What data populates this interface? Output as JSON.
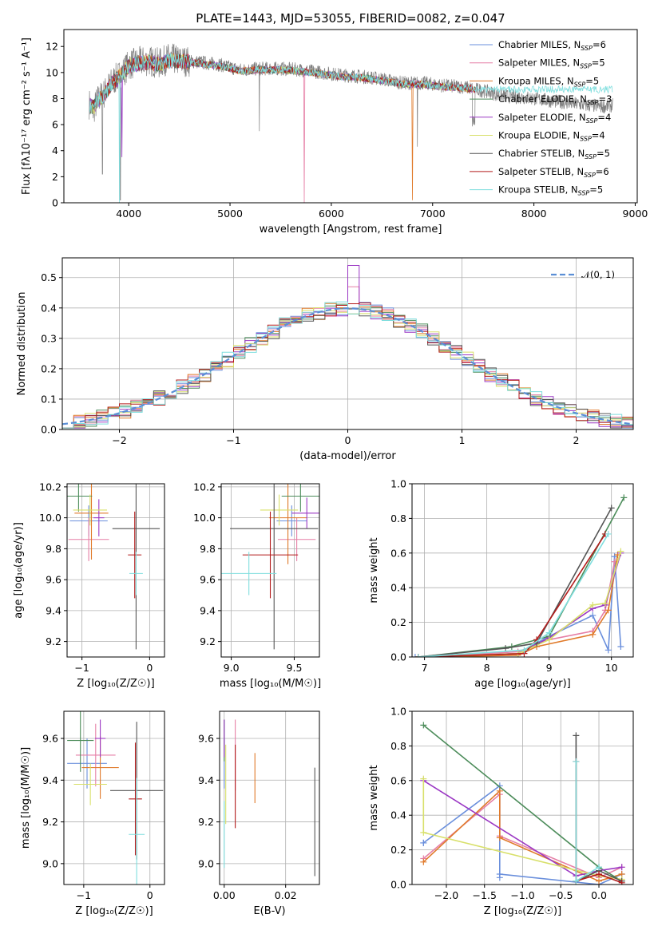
{
  "colors": [
    "#6a8fdc",
    "#e67fa6",
    "#e07a2a",
    "#4c8c5a",
    "#9b38c4",
    "#d8e06a",
    "#555555",
    "#b31b1b",
    "#7fdede"
  ],
  "chart_data": [
    {
      "id": "spectrum",
      "type": "line",
      "title": "PLATE=1443, MJD=53055, FIBERID=0082, z=0.047",
      "xlabel": "wavelength [Angstrom, rest frame]",
      "ylabel": "Flux [fλ10⁻¹⁷ erg cm⁻² s⁻¹ A⁻¹]",
      "xlim": [
        3360,
        9020
      ],
      "ylim": [
        0,
        13.3
      ],
      "xticks": [
        4000,
        5000,
        6000,
        7000,
        8000,
        9000
      ],
      "yticks": [
        0,
        2,
        4,
        6,
        8,
        10,
        12
      ],
      "legend_position": "right",
      "observed": {
        "color": "#808080",
        "x": [
          3610,
          3650,
          3700,
          3750,
          3800,
          3850,
          3900,
          3950,
          4000,
          4100,
          4200,
          4300,
          4400,
          4500,
          4700,
          4900,
          5100,
          5300,
          5500,
          5700,
          5900,
          6100,
          6300,
          6500,
          6700,
          6900,
          7100,
          7300,
          7500,
          7700,
          7900,
          8100,
          8300,
          8500,
          8700,
          8780
        ],
        "y": [
          7.6,
          7.1,
          8.0,
          8.3,
          8.9,
          9.4,
          9.7,
          10.1,
          10.6,
          10.8,
          10.9,
          10.7,
          11.1,
          10.9,
          10.8,
          10.6,
          10.2,
          10.3,
          10.3,
          10.2,
          10.0,
          9.8,
          9.7,
          9.5,
          9.2,
          9.2,
          9.0,
          8.9,
          8.6,
          8.2,
          8.1,
          7.9,
          7.7,
          7.5,
          7.4,
          7.5
        ]
      },
      "model": {
        "x": [
          3610,
          3650,
          3700,
          3750,
          3800,
          3850,
          3900,
          3950,
          4000,
          4100,
          4200,
          4300,
          4400,
          4500,
          4700,
          4900,
          5100,
          5300,
          5500,
          5700,
          5900,
          6100,
          6300,
          6500,
          6700,
          6900,
          7100,
          7300,
          7420
        ],
        "y": [
          7.5,
          7.3,
          7.9,
          8.2,
          8.8,
          9.3,
          9.6,
          10.0,
          10.5,
          10.7,
          10.8,
          10.6,
          10.9,
          10.9,
          10.7,
          10.5,
          10.1,
          10.2,
          10.2,
          10.1,
          9.9,
          9.7,
          9.6,
          9.4,
          9.1,
          9.1,
          8.9,
          8.8,
          8.7
        ]
      },
      "legend": [
        {
          "model": "Chabrier MILES",
          "nssp": 6
        },
        {
          "model": "Salpeter MILES",
          "nssp": 5
        },
        {
          "model": "Kroupa MILES",
          "nssp": 5
        },
        {
          "model": "Chabrier ELODIE",
          "nssp": 3
        },
        {
          "model": "Salpeter ELODIE",
          "nssp": 4
        },
        {
          "model": "Kroupa ELODIE",
          "nssp": 4
        },
        {
          "model": "Chabrier STELIB",
          "nssp": 5
        },
        {
          "model": "Salpeter STELIB",
          "nssp": 6
        },
        {
          "model": "Kroupa STELIB",
          "nssp": 5
        }
      ]
    },
    {
      "id": "residuals",
      "type": "line",
      "xlabel": "(data-model)/error",
      "ylabel": "Normed distribution",
      "xlim": [
        -2.5,
        2.5
      ],
      "ylim": [
        0,
        0.565
      ],
      "xticks": [
        -2,
        -1,
        0,
        1,
        2
      ],
      "yticks": [
        0.0,
        0.1,
        0.2,
        0.3,
        0.4,
        0.5
      ],
      "grid": true,
      "legend_position": "top-right",
      "reference": {
        "name": "𝒩(0, 1)",
        "color": "#5b8fd6",
        "style": "dashed",
        "mean": 0,
        "sigma": 1
      },
      "histogram": {
        "bin_width": 0.1,
        "x_start": -2.5,
        "x_end": 2.5
      }
    },
    {
      "id": "age_vs_Z",
      "type": "scatter",
      "xlabel": "Z [log₁₀(Z/Z☉)]",
      "ylabel": "age  [log₁₀(age/yr)]",
      "xlim": [
        -1.22,
        0.22
      ],
      "ylim": [
        9.1,
        10.22
      ],
      "xticks": [
        -1,
        0
      ],
      "yticks": [
        9.2,
        9.4,
        9.6,
        9.8,
        10.0,
        10.2
      ],
      "grid": true,
      "points": [
        {
          "x": -0.9,
          "y": 9.98,
          "ex": 0.28,
          "ey": 0.1
        },
        {
          "x": -0.9,
          "y": 9.86,
          "ex": 0.3,
          "ey": 0.14
        },
        {
          "x": -0.86,
          "y": 10.03,
          "ex": 0.25,
          "ey": 0.3
        },
        {
          "x": -1.05,
          "y": 10.14,
          "ex": 0.2,
          "ey": 0.1
        },
        {
          "x": -0.75,
          "y": 10.0,
          "ex": 0.08,
          "ey": 0.12
        },
        {
          "x": -0.88,
          "y": 10.05,
          "ex": 0.25,
          "ey": 0.1
        },
        {
          "x": -0.2,
          "y": 9.93,
          "ex": 0.35,
          "ey": 0.78
        },
        {
          "x": -0.22,
          "y": 9.76,
          "ex": 0.1,
          "ey": 0.28
        },
        {
          "x": -0.2,
          "y": 9.64,
          "ex": 0.1,
          "ey": 0.14
        }
      ]
    },
    {
      "id": "age_vs_mass",
      "type": "scatter",
      "xlabel": "mass [log₁₀(M/M☉)]",
      "ylabel": "",
      "xlim": [
        8.92,
        9.7
      ],
      "ylim": [
        9.1,
        10.22
      ],
      "xticks": [
        9.0,
        9.5
      ],
      "yticks": [
        9.2,
        9.4,
        9.6,
        9.8,
        10.0,
        10.2
      ],
      "grid": true,
      "points": [
        {
          "x": 9.48,
          "y": 9.98,
          "ex": 0.12,
          "ey": 0.1
        },
        {
          "x": 9.52,
          "y": 9.86,
          "ex": 0.15,
          "ey": 0.14
        },
        {
          "x": 9.45,
          "y": 10.0,
          "ex": 0.15,
          "ey": 0.3
        },
        {
          "x": 9.55,
          "y": 10.14,
          "ex": 0.15,
          "ey": 0.1
        },
        {
          "x": 9.6,
          "y": 10.03,
          "ex": 0.12,
          "ey": 0.1
        },
        {
          "x": 9.38,
          "y": 10.05,
          "ex": 0.15,
          "ey": 0.1
        },
        {
          "x": 9.34,
          "y": 9.93,
          "ex": 0.35,
          "ey": 0.78
        },
        {
          "x": 9.31,
          "y": 9.76,
          "ex": 0.22,
          "ey": 0.28
        },
        {
          "x": 9.14,
          "y": 9.64,
          "ex": 0.22,
          "ey": 0.14
        }
      ]
    },
    {
      "id": "weight_vs_age",
      "type": "line",
      "xlabel": "age  [log₁₀(age/yr)]",
      "ylabel": "mass weight",
      "xlim": [
        6.8,
        10.35
      ],
      "ylim": [
        0,
        1.0
      ],
      "xticks": [
        7,
        8,
        9,
        10
      ],
      "yticks": [
        0.0,
        0.2,
        0.4,
        0.6,
        0.8,
        1.0
      ],
      "grid": true,
      "series": [
        {
          "x": [
            6.85,
            8.5,
            9.0,
            9.7,
            9.95,
            10.05,
            10.15
          ],
          "y": [
            0.0,
            0.02,
            0.12,
            0.24,
            0.04,
            0.58,
            0.06
          ]
        },
        {
          "x": [
            6.9,
            8.5,
            9.0,
            9.7,
            9.9,
            10.05
          ],
          "y": [
            0.0,
            0.03,
            0.1,
            0.15,
            0.27,
            0.55
          ]
        },
        {
          "x": [
            6.9,
            8.5,
            8.8,
            9.7,
            9.95,
            10.1
          ],
          "y": [
            0.0,
            0.01,
            0.06,
            0.13,
            0.27,
            0.59
          ]
        },
        {
          "x": [
            6.9,
            8.4,
            9.0,
            10.2
          ],
          "y": [
            0.0,
            0.06,
            0.12,
            0.92
          ]
        },
        {
          "x": [
            6.9,
            8.5,
            9.0,
            9.7,
            9.9,
            10.15
          ],
          "y": [
            0.0,
            0.02,
            0.11,
            0.28,
            0.3,
            0.6
          ]
        },
        {
          "x": [
            6.9,
            8.5,
            9.0,
            9.7,
            9.9,
            10.15
          ],
          "y": [
            0.0,
            0.02,
            0.1,
            0.3,
            0.31,
            0.61
          ]
        },
        {
          "x": [
            6.9,
            8.3,
            8.8,
            10.0
          ],
          "y": [
            0.0,
            0.05,
            0.08,
            0.86
          ]
        },
        {
          "x": [
            6.9,
            8.6,
            8.8,
            9.9
          ],
          "y": [
            0.0,
            0.02,
            0.1,
            0.71
          ]
        },
        {
          "x": [
            6.9,
            8.6,
            9.0,
            9.95
          ],
          "y": [
            0.0,
            0.04,
            0.14,
            0.71
          ]
        }
      ]
    },
    {
      "id": "mass_vs_Z",
      "type": "scatter",
      "xlabel": "Z [log₁₀(Z/Z☉)]",
      "ylabel": "mass [log₁₀(M/M☉)]",
      "xlim": [
        -1.3,
        0.22
      ],
      "ylim": [
        8.9,
        9.73
      ],
      "xticks": [
        -1,
        0
      ],
      "yticks": [
        9.0,
        9.2,
        9.4,
        9.6
      ],
      "grid": true,
      "points": [
        {
          "x": -0.95,
          "y": 9.48,
          "ex": 0.3,
          "ey": 0.12
        },
        {
          "x": -0.82,
          "y": 9.52,
          "ex": 0.3,
          "ey": 0.15
        },
        {
          "x": -0.75,
          "y": 9.46,
          "ex": 0.28,
          "ey": 0.15
        },
        {
          "x": -1.05,
          "y": 9.59,
          "ex": 0.2,
          "ey": 0.15
        },
        {
          "x": -0.75,
          "y": 9.6,
          "ex": 0.08,
          "ey": 0.09
        },
        {
          "x": -0.9,
          "y": 9.38,
          "ex": 0.25,
          "ey": 0.1
        },
        {
          "x": -0.2,
          "y": 9.35,
          "ex": 0.4,
          "ey": 0.33
        },
        {
          "x": -0.22,
          "y": 9.31,
          "ex": 0.1,
          "ey": 0.27
        },
        {
          "x": -0.2,
          "y": 9.14,
          "ex": 0.12,
          "ey": 0.27
        }
      ]
    },
    {
      "id": "mass_vs_ebv",
      "type": "scatter",
      "xlabel": "E(B-V)",
      "ylabel": "",
      "xlim": [
        -0.0015,
        0.031
      ],
      "ylim": [
        8.9,
        9.73
      ],
      "xticks": [
        0.0,
        0.02
      ],
      "yticks": [
        9.0,
        9.2,
        9.4,
        9.6
      ],
      "grid": true,
      "points": [
        {
          "x": 0.0,
          "y": 9.48,
          "ey": 0.12
        },
        {
          "x": 0.0036,
          "y": 9.52,
          "ey": 0.17
        },
        {
          "x": 0.01,
          "y": 9.41,
          "ey": 0.12
        },
        {
          "x": 0.0,
          "y": 9.59,
          "ey": 0.1
        },
        {
          "x": 0.0,
          "y": 9.6,
          "ey": 0.09
        },
        {
          "x": 0.0005,
          "y": 9.38,
          "ey": 0.19
        },
        {
          "x": 0.0295,
          "y": 9.2,
          "ey": 0.26
        },
        {
          "x": 0.0036,
          "y": 9.37,
          "ey": 0.2
        },
        {
          "x": 0.0,
          "y": 9.14,
          "ey": 0.16
        }
      ]
    },
    {
      "id": "weight_vs_Z",
      "type": "line",
      "xlabel": "Z [log₁₀(Z/Z☉)]",
      "ylabel": "mass weight",
      "xlim": [
        -2.45,
        0.45
      ],
      "ylim": [
        0,
        1.0
      ],
      "xticks": [
        -2.0,
        -1.5,
        -1.0,
        -0.5,
        0.0
      ],
      "yticks": [
        0.0,
        0.2,
        0.4,
        0.6,
        0.8,
        1.0
      ],
      "grid": true,
      "series": [
        {
          "x": [
            -2.3,
            -2.3,
            -1.3,
            -1.3,
            -1.3,
            0.0,
            0.3
          ],
          "y": [
            0.24,
            0.24,
            0.57,
            0.04,
            0.06,
            0.0,
            0.06
          ]
        },
        {
          "x": [
            -2.3,
            -1.3,
            -1.3,
            0.0,
            0.3
          ],
          "y": [
            0.15,
            0.52,
            0.28,
            0.04,
            0.1
          ]
        },
        {
          "x": [
            -2.3,
            -1.3,
            -1.3,
            0.0,
            0.3
          ],
          "y": [
            0.13,
            0.54,
            0.27,
            0.02,
            0.06
          ]
        },
        {
          "x": [
            -2.3,
            0.0,
            0.3
          ],
          "y": [
            0.92,
            0.1,
            0.02
          ]
        },
        {
          "x": [
            -2.3,
            -0.3,
            0.0,
            0.3
          ],
          "y": [
            0.6,
            0.05,
            0.08,
            0.1
          ]
        },
        {
          "x": [
            -2.3,
            -2.3,
            0.0,
            0.3
          ],
          "y": [
            0.61,
            0.3,
            0.05,
            0.03
          ]
        },
        {
          "x": [
            -0.3,
            -0.3,
            0.0,
            0.3
          ],
          "y": [
            0.86,
            0.02,
            0.08,
            0.02
          ]
        },
        {
          "x": [
            -0.3,
            -0.3,
            0.0,
            0.3
          ],
          "y": [
            0.71,
            0.02,
            0.06,
            0.01
          ]
        },
        {
          "x": [
            -0.3,
            -0.3,
            0.0
          ],
          "y": [
            0.71,
            0.02,
            0.1
          ]
        }
      ]
    }
  ]
}
